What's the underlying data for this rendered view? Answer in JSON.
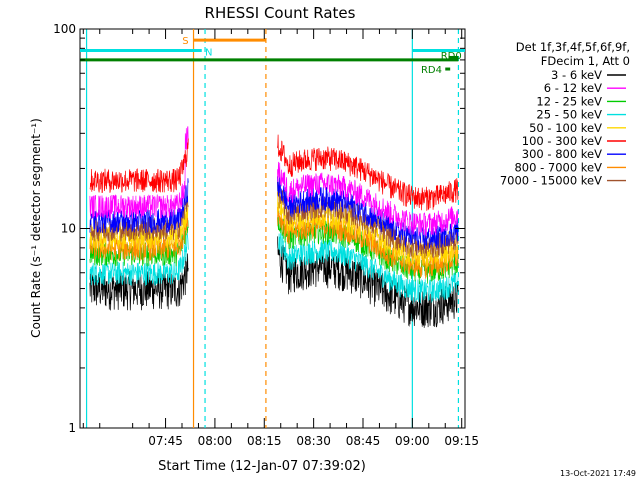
{
  "chart_data": {
    "type": "line",
    "title": "RHESSI Count Rates",
    "xlabel": "Start Time (12-Jan-07 07:39:02)",
    "ylabel": "Count Rate (s⁻¹ detector segment⁻¹)",
    "yscale": "log",
    "ylim": [
      1,
      100
    ],
    "xlim_minutes": [
      439,
      556
    ],
    "y_ticks": [
      "1",
      "10",
      "100"
    ],
    "x_ticks": [
      {
        "label": "07:45",
        "minute": 465
      },
      {
        "label": "08:00",
        "minute": 480
      },
      {
        "label": "08:15",
        "minute": 495
      },
      {
        "label": "08:30",
        "minute": 510
      },
      {
        "label": "08:45",
        "minute": 525
      },
      {
        "label": "09:00",
        "minute": 540
      },
      {
        "label": "09:15",
        "minute": 555
      }
    ],
    "legend_header": [
      "Det 1f,3f,4f,5f,6f,9f,",
      "FDecim 1, Att 0"
    ],
    "legend_position": "right",
    "series": [
      {
        "name": "3 - 6 keV",
        "color": "#000000",
        "level": 5.0
      },
      {
        "name": "6 - 12 keV",
        "color": "#ff00ff",
        "level": 13.0
      },
      {
        "name": "12 - 25 keV",
        "color": "#00cc00",
        "level": 7.5
      },
      {
        "name": "25 - 50 keV",
        "color": "#00e0e0",
        "level": 6.0
      },
      {
        "name": "50 - 100 keV",
        "color": "#ffd700",
        "level": 9.0
      },
      {
        "name": "100 - 300 keV",
        "color": "#ff0000",
        "level": 17.5
      },
      {
        "name": "300 - 800 keV",
        "color": "#0000ff",
        "level": 11.0
      },
      {
        "name": "800 - 7000 keV",
        "color": "#ff8c00",
        "level": 8.0
      },
      {
        "name": "7000 - 15000 keV",
        "color": "#a0522d",
        "level": 10.0
      }
    ],
    "bars": [
      {
        "label": "S",
        "color": "#ff8c00",
        "y": 88
      },
      {
        "label": "N",
        "color": "#00e0e0",
        "y": 78
      },
      {
        "label": "RD0",
        "color": "#008000",
        "y": 70
      },
      {
        "label": "RD4",
        "color": "#008000",
        "y": 63
      }
    ],
    "footer_date": "13-Oct-2021 17:49"
  }
}
